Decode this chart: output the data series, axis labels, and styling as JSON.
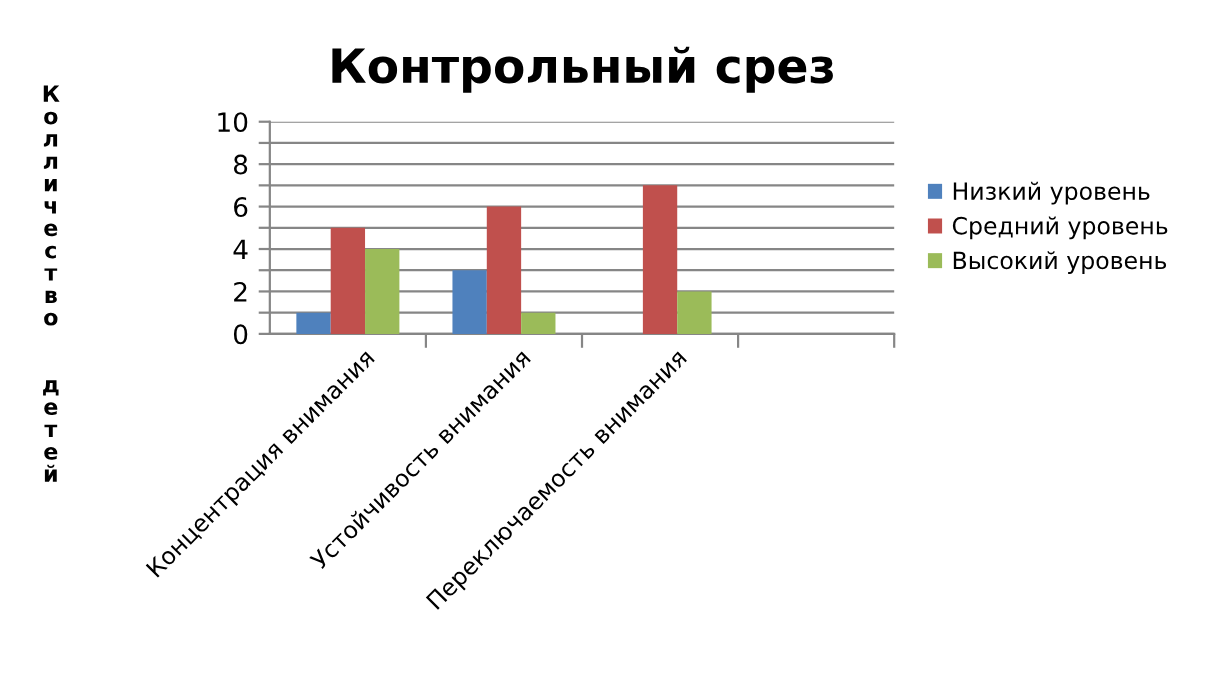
{
  "chart_data": {
    "type": "bar",
    "title": "Контрольный срез",
    "ylabel": "Колличество  детей",
    "categories": [
      "Концентрация внимания",
      "Устойчивость внимания",
      "Переключаемость внимания",
      null
    ],
    "series": [
      {
        "name": "Низкий уровень",
        "color": "#4f81bd",
        "values": [
          1,
          3,
          0,
          null
        ]
      },
      {
        "name": "Средний уровень",
        "color": "#c0504d",
        "values": [
          5,
          6,
          7,
          null
        ]
      },
      {
        "name": "Высокий уровень",
        "color": "#9bbb59",
        "values": [
          4,
          1,
          2,
          null
        ]
      }
    ],
    "ylim": [
      0,
      10
    ],
    "yticks": [
      0,
      {
        "value": 1,
        "label": null
      },
      2,
      {
        "value": 3,
        "label": null
      },
      4,
      {
        "value": 5,
        "label": null
      },
      6,
      {
        "value": 7,
        "label": null
      },
      8,
      {
        "value": 9,
        "label": null
      },
      10
    ],
    "grid": "y",
    "legend": "right"
  }
}
